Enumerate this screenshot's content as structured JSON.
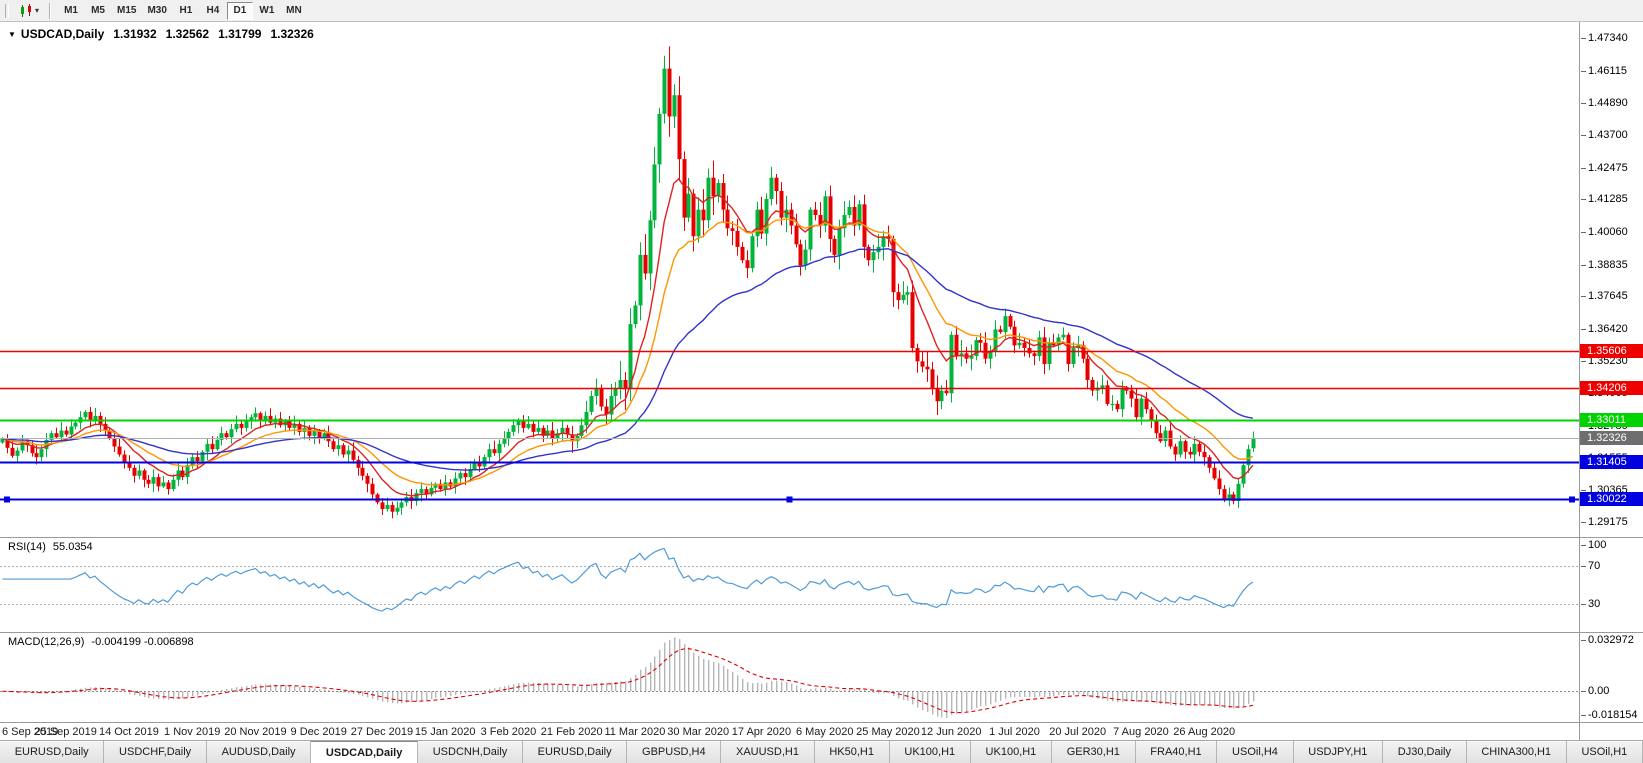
{
  "toolbar": {
    "timeframes": [
      "M1",
      "M5",
      "M15",
      "M30",
      "H1",
      "H4",
      "D1",
      "W1",
      "MN"
    ],
    "active_timeframe": "D1"
  },
  "chart": {
    "title": "USDCAD,Daily",
    "open": "1.31932",
    "high": "1.32562",
    "low": "1.31799",
    "close": "1.32326"
  },
  "price_axis": {
    "min": 1.286,
    "max": 1.4795,
    "labels": [
      "1.47340",
      "1.46115",
      "1.44890",
      "1.43700",
      "1.42475",
      "1.41285",
      "1.40060",
      "1.38835",
      "1.37645",
      "1.36420",
      "1.35230",
      "1.34005",
      "1.32780",
      "1.31555",
      "1.30365",
      "1.29175"
    ]
  },
  "levels": [
    {
      "price": 1.35606,
      "label": "1.35606",
      "color": "#ee0000",
      "width": 1.4,
      "selected": false
    },
    {
      "price": 1.34206,
      "label": "1.34206",
      "color": "#ee0000",
      "width": 1.4,
      "selected": false
    },
    {
      "price": 1.33011,
      "label": "1.33011",
      "color": "#00d400",
      "width": 2,
      "selected": false
    },
    {
      "price": 1.31405,
      "label": "1.31405",
      "color": "#0000e0",
      "width": 2,
      "selected": false
    },
    {
      "price": 1.30022,
      "label": "1.30022",
      "color": "#0000e0",
      "width": 2,
      "selected": true
    }
  ],
  "bid_line": {
    "price": 1.32326,
    "label": "1.32326",
    "line_color": "#b0b0b0",
    "badge_color": "#6e6e6e"
  },
  "time_axis": {
    "labels": [
      "6 Sep 2019",
      "25 Sep 2019",
      "14 Oct 2019",
      "1 Nov 2019",
      "20 Nov 2019",
      "9 Dec 2019",
      "27 Dec 2019",
      "15 Jan 2020",
      "3 Feb 2020",
      "21 Feb 2020",
      "11 Mar 2020",
      "30 Mar 2020",
      "17 Apr 2020",
      "6 May 2020",
      "25 May 2020",
      "12 Jun 2020",
      "1 Jul 2020",
      "20 Jul 2020",
      "7 Aug 2020",
      "26 Aug 2020"
    ]
  },
  "indicators": {
    "rsi": {
      "label": "RSI(14)",
      "value": "55.0354",
      "period": 14,
      "scale": [
        "100",
        "70",
        "30"
      ],
      "level_lines": [
        70,
        30
      ],
      "color": "#4f9bd8"
    },
    "macd": {
      "label": "MACD(12,26,9)",
      "values": "-0.004199 -0.006898",
      "scale_top": "0.032972",
      "scale_zero": "0.00",
      "scale_bottom": "-0.018154",
      "histogram_color": "#b6b6b6",
      "signal_color": "#e00000"
    }
  },
  "tabs": {
    "active_index": 3,
    "items": [
      "EURUSD,Daily",
      "USDCHF,Daily",
      "AUDUSD,Daily",
      "USDCAD,Daily",
      "USDCNH,Daily",
      "EURUSD,Daily",
      "GBPUSD,H4",
      "XAUUSD,H1",
      "HK50,H1",
      "UK100,H1",
      "UK100,H1",
      "GER30,H1",
      "FRA40,H1",
      "USOil,H4",
      "USDJPY,H1",
      "DJ30,Daily",
      "CHINA300,H1",
      "USOil,H1"
    ]
  },
  "chart_data": {
    "type": "candlestick",
    "symbol": "USDCAD",
    "timeframe": "Daily",
    "bull_color": "#00b43c",
    "bear_color": "#e60000",
    "right_fraction": 0.795,
    "label_every": 13,
    "moving_averages": [
      {
        "period": 10,
        "color": "#dd2222"
      },
      {
        "period": 20,
        "color": "#ff9500"
      },
      {
        "period": 50,
        "color": "#3333cc"
      }
    ],
    "closes": [
      1.323,
      1.3195,
      1.3165,
      1.3185,
      1.322,
      1.3205,
      1.3175,
      1.316,
      1.319,
      1.3225,
      1.325,
      1.3235,
      1.326,
      1.3245,
      1.3275,
      1.329,
      1.331,
      1.333,
      1.33,
      1.3315,
      1.3285,
      1.326,
      1.323,
      1.32,
      1.317,
      1.314,
      1.312,
      1.309,
      1.311,
      1.3075,
      1.306,
      1.3085,
      1.305,
      1.3065,
      1.304,
      1.3075,
      1.311,
      1.3085,
      1.313,
      1.316,
      1.3145,
      1.318,
      1.321,
      1.319,
      1.3225,
      1.325,
      1.3235,
      1.3265,
      1.3285,
      1.327,
      1.3295,
      1.331,
      1.3325,
      1.33,
      1.3315,
      1.329,
      1.3305,
      1.328,
      1.3295,
      1.327,
      1.3285,
      1.3255,
      1.327,
      1.324,
      1.326,
      1.323,
      1.325,
      1.322,
      1.319,
      1.3205,
      1.317,
      1.3185,
      1.315,
      1.312,
      1.309,
      1.306,
      1.302,
      1.299,
      1.2965,
      1.298,
      1.2955,
      1.297,
      1.299,
      1.301,
      1.2995,
      1.3025,
      1.304,
      1.302,
      1.3045,
      1.306,
      1.304,
      1.3065,
      1.305,
      1.308,
      1.31,
      1.3085,
      1.3115,
      1.314,
      1.3125,
      1.316,
      1.319,
      1.3175,
      1.321,
      1.323,
      1.3255,
      1.328,
      1.33,
      1.327,
      1.3285,
      1.3255,
      1.327,
      1.324,
      1.326,
      1.323,
      1.325,
      1.327,
      1.3245,
      1.322,
      1.324,
      1.328,
      1.333,
      1.339,
      1.342,
      1.335,
      1.332,
      1.339,
      1.342,
      1.345,
      1.342,
      1.366,
      1.373,
      1.392,
      1.385,
      1.405,
      1.426,
      1.445,
      1.462,
      1.444,
      1.452,
      1.428,
      1.406,
      1.415,
      1.399,
      1.409,
      1.405,
      1.421,
      1.414,
      1.419,
      1.409,
      1.402,
      1.401,
      1.395,
      1.39,
      1.387,
      1.399,
      1.409,
      1.4,
      1.413,
      1.421,
      1.416,
      1.406,
      1.409,
      1.403,
      1.396,
      1.388,
      1.394,
      1.409,
      1.407,
      1.403,
      1.414,
      1.398,
      1.392,
      1.402,
      1.407,
      1.41,
      1.403,
      1.411,
      1.395,
      1.39,
      1.393,
      1.395,
      1.399,
      1.398,
      1.378,
      1.375,
      1.377,
      1.378,
      1.357,
      1.352,
      1.35,
      1.349,
      1.342,
      1.337,
      1.341,
      1.34,
      1.362,
      1.354,
      1.355,
      1.353,
      1.354,
      1.36,
      1.359,
      1.353,
      1.356,
      1.364,
      1.363,
      1.369,
      1.365,
      1.358,
      1.359,
      1.357,
      1.355,
      1.354,
      1.361,
      1.351,
      1.359,
      1.358,
      1.361,
      1.362,
      1.351,
      1.357,
      1.358,
      1.353,
      1.345,
      1.341,
      1.342,
      1.343,
      1.336,
      1.336,
      1.334,
      1.342,
      1.341,
      1.338,
      1.331,
      1.338,
      1.334,
      1.33,
      1.325,
      1.322,
      1.326,
      1.32,
      1.317,
      1.322,
      1.318,
      1.317,
      1.321,
      1.318,
      1.316,
      1.312,
      1.308,
      1.304,
      1.3,
      1.302,
      1.2995,
      1.306,
      1.313,
      1.319,
      1.3233
    ],
    "overrides": {
      "136": {
        "high": 1.4668
      },
      "257": {
        "open": 1.31932,
        "high": 1.32562,
        "low": 1.31799,
        "close": 1.32326
      }
    }
  }
}
